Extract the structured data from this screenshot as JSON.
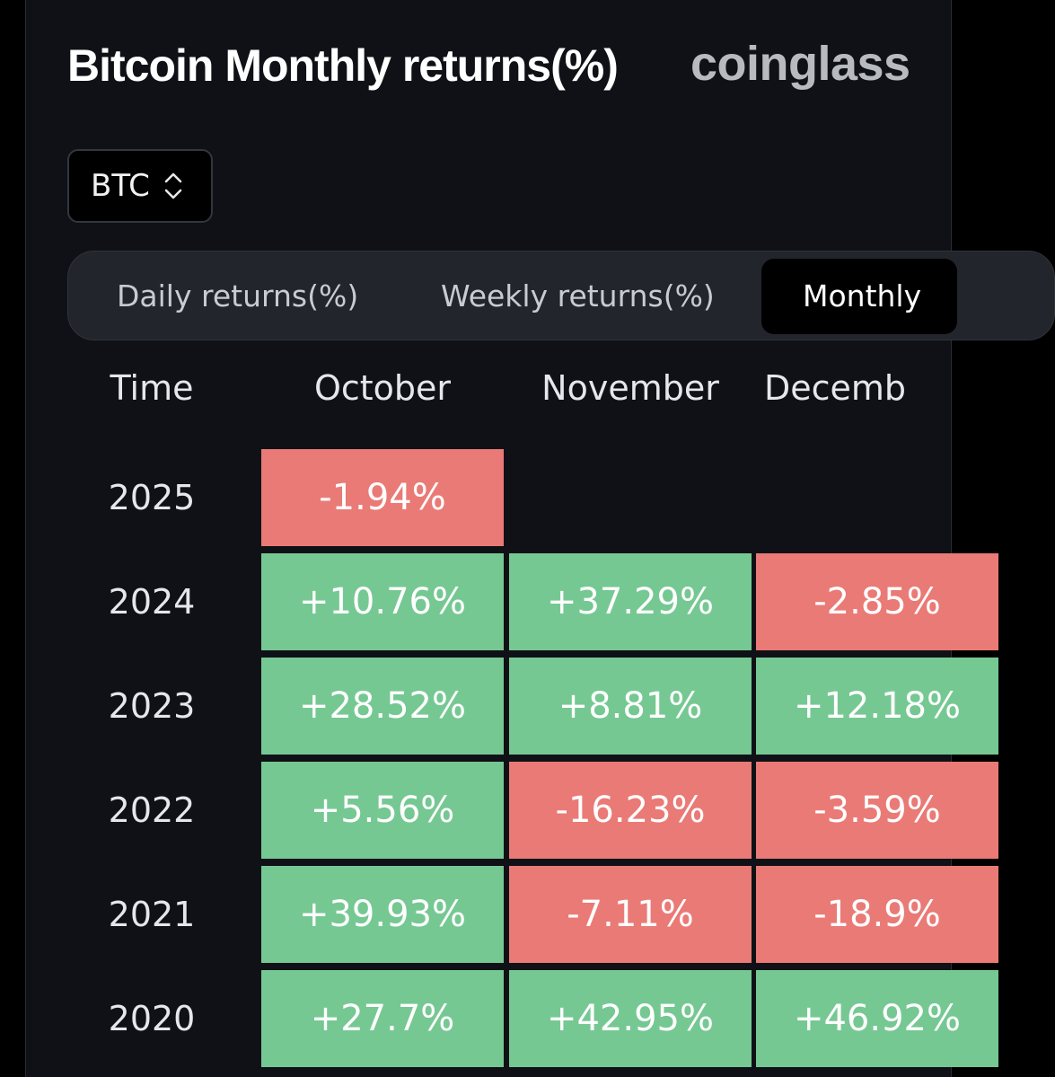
{
  "header": {
    "title": "Bitcoin Monthly returns(%)",
    "brand": "coinglass"
  },
  "coin_select": {
    "value": "BTC",
    "icon": "chevron-updown-icon"
  },
  "tabs": [
    {
      "label": "Daily returns(%)",
      "active": false
    },
    {
      "label": "Weekly returns(%)",
      "active": false
    },
    {
      "label": "Monthly",
      "active": true
    }
  ],
  "table": {
    "time_header": "Time",
    "columns": [
      "October",
      "November",
      "Decemb"
    ],
    "rows": [
      {
        "year": "2025",
        "cells": [
          "-1.94%",
          "",
          ""
        ]
      },
      {
        "year": "2024",
        "cells": [
          "+10.76%",
          "+37.29%",
          "-2.85%"
        ]
      },
      {
        "year": "2023",
        "cells": [
          "+28.52%",
          "+8.81%",
          "+12.18%"
        ]
      },
      {
        "year": "2022",
        "cells": [
          "+5.56%",
          "-16.23%",
          "-3.59%"
        ]
      },
      {
        "year": "2021",
        "cells": [
          "+39.93%",
          "-7.11%",
          "-18.9%"
        ]
      },
      {
        "year": "2020",
        "cells": [
          "+27.7%",
          "+42.95%",
          "+46.92%"
        ]
      }
    ]
  },
  "colors": {
    "positive": "#76c893",
    "negative": "#ea7a76",
    "background": "#0f1116"
  }
}
